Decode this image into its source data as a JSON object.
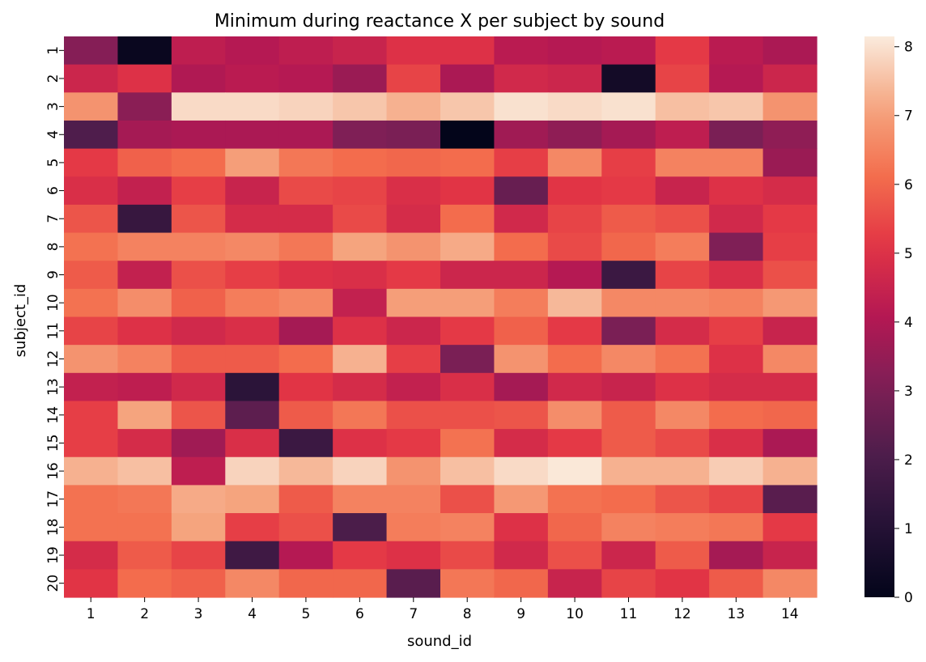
{
  "chart_data": {
    "type": "heatmap",
    "title": "Minimum during reactance X per subject by sound",
    "xlabel": "sound_id",
    "ylabel": "subject_id",
    "x_categories": [
      "1",
      "2",
      "3",
      "4",
      "5",
      "6",
      "7",
      "8",
      "9",
      "10",
      "11",
      "12",
      "13",
      "14"
    ],
    "y_categories": [
      "1",
      "2",
      "3",
      "4",
      "5",
      "6",
      "7",
      "8",
      "9",
      "10",
      "11",
      "12",
      "13",
      "14",
      "15",
      "16",
      "17",
      "18",
      "19",
      "20"
    ],
    "values": [
      [
        3.2,
        0.2,
        4.3,
        4.1,
        4.3,
        4.5,
        5.0,
        5.0,
        4.2,
        4.1,
        4.2,
        5.2,
        4.2,
        3.9
      ],
      [
        4.6,
        5.0,
        4.0,
        4.2,
        4.1,
        3.6,
        5.4,
        3.9,
        4.7,
        4.6,
        0.5,
        5.4,
        4.1,
        4.6
      ],
      [
        6.8,
        3.3,
        7.9,
        7.9,
        7.8,
        7.6,
        7.3,
        7.6,
        8.0,
        7.9,
        8.0,
        7.5,
        7.6,
        6.8
      ],
      [
        2.1,
        3.8,
        3.9,
        3.9,
        3.9,
        3.1,
        3.0,
        0.0,
        3.7,
        3.4,
        3.8,
        4.3,
        3.0,
        3.4
      ],
      [
        5.2,
        5.9,
        6.1,
        7.0,
        6.3,
        6.1,
        6.0,
        6.1,
        5.3,
        6.6,
        5.3,
        6.5,
        6.5,
        3.6
      ],
      [
        4.9,
        4.4,
        5.3,
        4.5,
        5.5,
        5.4,
        4.9,
        5.1,
        2.6,
        5.1,
        5.2,
        4.5,
        5.0,
        4.8
      ],
      [
        5.7,
        1.5,
        5.7,
        4.8,
        4.8,
        5.5,
        4.8,
        6.1,
        4.7,
        5.4,
        5.8,
        5.6,
        4.7,
        5.2
      ],
      [
        6.2,
        6.5,
        6.5,
        6.6,
        6.3,
        7.1,
        6.8,
        7.2,
        6.1,
        5.5,
        6.0,
        6.4,
        3.1,
        5.3
      ],
      [
        5.8,
        4.4,
        5.6,
        5.3,
        5.0,
        4.9,
        5.2,
        4.6,
        4.6,
        4.1,
        1.6,
        5.4,
        4.9,
        5.6
      ],
      [
        6.2,
        6.7,
        5.9,
        6.4,
        6.6,
        4.4,
        7.0,
        7.0,
        6.4,
        7.4,
        6.6,
        6.6,
        6.5,
        6.9
      ],
      [
        5.4,
        5.0,
        4.7,
        4.9,
        3.8,
        5.0,
        4.6,
        5.2,
        5.9,
        5.2,
        3.0,
        4.8,
        5.3,
        4.5
      ],
      [
        6.8,
        6.5,
        5.8,
        5.8,
        6.1,
        7.3,
        5.3,
        3.0,
        6.8,
        6.1,
        6.6,
        6.2,
        5.0,
        6.6
      ],
      [
        4.4,
        4.3,
        4.7,
        1.2,
        5.1,
        4.8,
        4.4,
        4.9,
        3.8,
        4.7,
        4.5,
        5.0,
        4.8,
        4.8
      ],
      [
        5.3,
        7.1,
        5.7,
        2.4,
        5.8,
        6.3,
        5.6,
        5.6,
        5.7,
        6.7,
        5.8,
        6.6,
        6.1,
        6.0
      ],
      [
        5.3,
        4.8,
        3.7,
        4.9,
        1.6,
        5.0,
        5.2,
        6.2,
        4.8,
        5.2,
        5.8,
        5.5,
        4.9,
        3.9
      ],
      [
        7.3,
        7.5,
        4.3,
        7.8,
        7.4,
        7.8,
        6.8,
        7.5,
        7.9,
        8.1,
        7.3,
        7.3,
        7.7,
        7.3
      ],
      [
        6.2,
        6.3,
        7.2,
        7.1,
        5.8,
        6.5,
        6.5,
        5.6,
        6.9,
        6.2,
        6.1,
        5.7,
        5.4,
        2.3
      ],
      [
        6.2,
        6.2,
        7.1,
        5.3,
        5.6,
        2.0,
        6.4,
        6.5,
        5.0,
        6.0,
        6.5,
        6.4,
        6.3,
        5.2
      ],
      [
        4.8,
        5.8,
        5.4,
        1.7,
        4.1,
        5.2,
        5.0,
        5.5,
        4.7,
        5.6,
        4.6,
        5.8,
        3.8,
        4.5
      ],
      [
        5.1,
        6.1,
        5.9,
        6.6,
        6.0,
        6.0,
        2.3,
        6.3,
        6.0,
        4.5,
        5.4,
        5.1,
        5.8,
        6.6
      ]
    ],
    "colorscale": "rocket",
    "vmin": 0,
    "vmax": 8.15,
    "colorbar_ticks": [
      0,
      1,
      2,
      3,
      4,
      5,
      6,
      7,
      8
    ],
    "grid": false,
    "legend": "colorbar-right"
  }
}
